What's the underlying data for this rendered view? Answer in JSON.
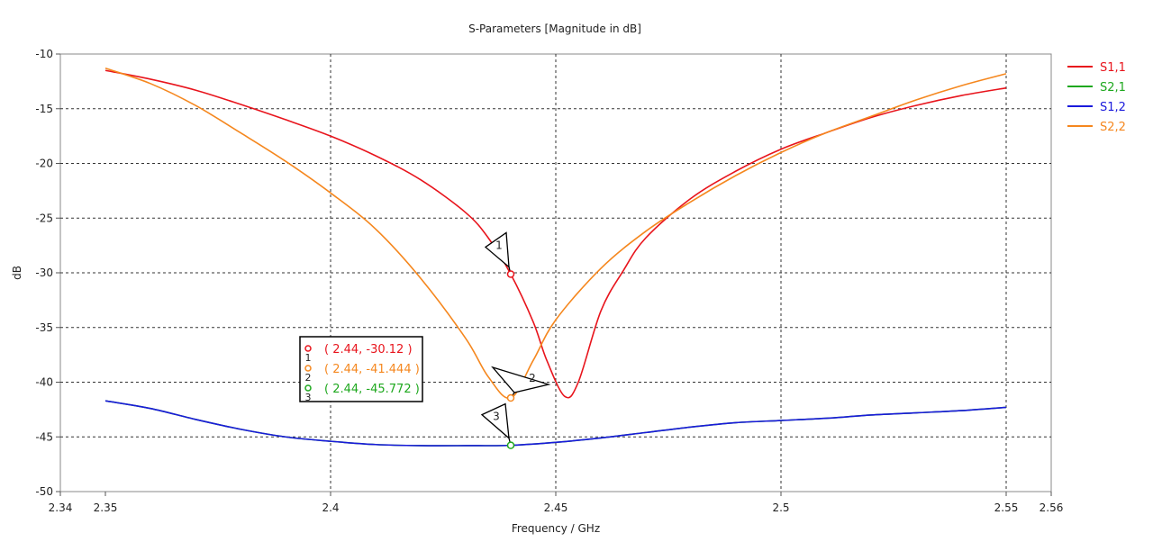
{
  "chart_data": {
    "type": "line",
    "title": "S-Parameters [Magnitude in dB]",
    "xlabel": "Frequency / GHz",
    "ylabel": "dB",
    "xlim": [
      2.34,
      2.56
    ],
    "ylim": [
      -50,
      -10
    ],
    "xticks": [
      2.34,
      2.35,
      2.4,
      2.45,
      2.5,
      2.55,
      2.56
    ],
    "xtick_labels": [
      "2.34",
      "2.35",
      "2.4",
      "2.45",
      "2.5",
      "2.55",
      "2.56"
    ],
    "yticks": [
      -10,
      -15,
      -20,
      -25,
      -30,
      -35,
      -40,
      -45,
      -50
    ],
    "ytick_labels": [
      "-10",
      "-15",
      "-20",
      "-25",
      "-30",
      "-35",
      "-40",
      "-45",
      "-50"
    ],
    "grid": true,
    "legend_position": "right",
    "series": [
      {
        "name": "S1,1",
        "color": "#e8141c",
        "x": [
          2.35,
          2.36,
          2.37,
          2.38,
          2.39,
          2.4,
          2.41,
          2.42,
          2.43,
          2.435,
          2.44,
          2.445,
          2.448,
          2.452,
          2.455,
          2.46,
          2.465,
          2.47,
          2.48,
          2.49,
          2.5,
          2.51,
          2.52,
          2.53,
          2.54,
          2.55
        ],
        "y": [
          -11.5,
          -12.3,
          -13.3,
          -14.6,
          -16.0,
          -17.5,
          -19.3,
          -21.5,
          -24.5,
          -26.8,
          -30.12,
          -34.5,
          -38.0,
          -41.3,
          -40.0,
          -33.5,
          -29.8,
          -26.8,
          -23.2,
          -20.7,
          -18.7,
          -17.2,
          -15.8,
          -14.7,
          -13.8,
          -13.1
        ]
      },
      {
        "name": "S2,1",
        "color": "#1ea81e",
        "x": [
          2.35,
          2.36,
          2.37,
          2.38,
          2.39,
          2.4,
          2.41,
          2.42,
          2.43,
          2.44,
          2.45,
          2.46,
          2.47,
          2.48,
          2.49,
          2.5,
          2.51,
          2.52,
          2.53,
          2.54,
          2.55
        ],
        "y": [
          -41.7,
          -42.4,
          -43.4,
          -44.3,
          -45.0,
          -45.4,
          -45.7,
          -45.8,
          -45.8,
          -45.772,
          -45.5,
          -45.1,
          -44.6,
          -44.1,
          -43.7,
          -43.5,
          -43.3,
          -43.0,
          -42.8,
          -42.6,
          -42.3
        ]
      },
      {
        "name": "S1,2",
        "color": "#1a1adc",
        "x": [
          2.35,
          2.36,
          2.37,
          2.38,
          2.39,
          2.4,
          2.41,
          2.42,
          2.43,
          2.44,
          2.45,
          2.46,
          2.47,
          2.48,
          2.49,
          2.5,
          2.51,
          2.52,
          2.53,
          2.54,
          2.55
        ],
        "y": [
          -41.7,
          -42.4,
          -43.4,
          -44.3,
          -45.0,
          -45.4,
          -45.7,
          -45.8,
          -45.8,
          -45.772,
          -45.5,
          -45.1,
          -44.6,
          -44.1,
          -43.7,
          -43.5,
          -43.3,
          -43.0,
          -42.8,
          -42.6,
          -42.3
        ]
      },
      {
        "name": "S2,2",
        "color": "#f5871e",
        "x": [
          2.35,
          2.36,
          2.37,
          2.38,
          2.39,
          2.4,
          2.41,
          2.42,
          2.43,
          2.435,
          2.44,
          2.445,
          2.45,
          2.46,
          2.47,
          2.48,
          2.49,
          2.5,
          2.51,
          2.52,
          2.53,
          2.54,
          2.55
        ],
        "y": [
          -11.3,
          -12.7,
          -14.7,
          -17.2,
          -19.8,
          -22.7,
          -26.0,
          -30.5,
          -36.0,
          -39.5,
          -41.444,
          -38.0,
          -34.3,
          -29.6,
          -26.2,
          -23.5,
          -21.1,
          -19.0,
          -17.2,
          -15.7,
          -14.2,
          -12.9,
          -11.8
        ]
      }
    ],
    "markers": [
      {
        "id": "1",
        "x": 2.44,
        "y": -30.12,
        "color": "#e8141c",
        "label": "( 2.44, -30.12 )"
      },
      {
        "id": "2",
        "x": 2.44,
        "y": -41.444,
        "color": "#f5871e",
        "label": "( 2.44, -41.444 )"
      },
      {
        "id": "3",
        "x": 2.44,
        "y": -45.772,
        "color": "#1ea81e",
        "label": "( 2.44, -45.772 )"
      }
    ]
  }
}
